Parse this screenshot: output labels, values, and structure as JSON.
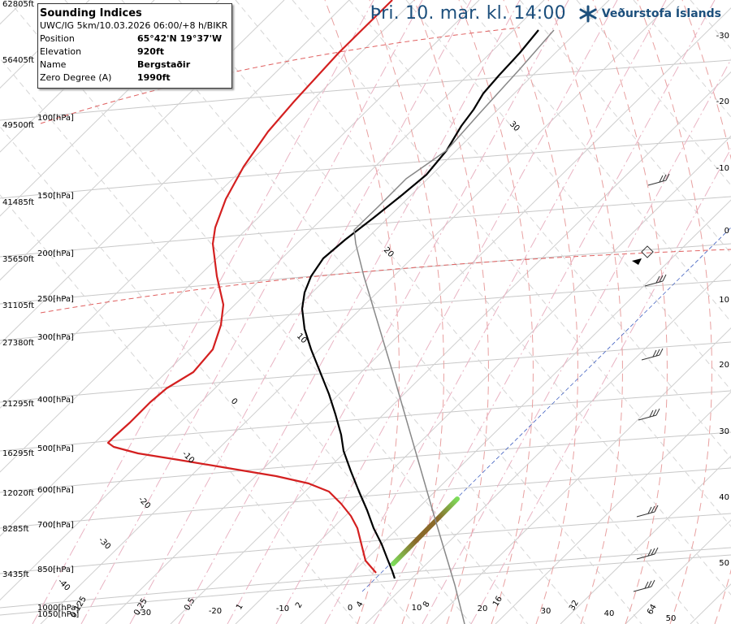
{
  "header": {
    "title": "Þri. 10. mar. kl. 14:00",
    "brand": "Veðurstofa Íslands"
  },
  "info": {
    "title": "Sounding Indices",
    "model_line": "UWC/IG 5km/10.03.2026 06:00/+8 h/BIKR",
    "rows": [
      {
        "label": "Position",
        "value": "65°42'N 19°37'W"
      },
      {
        "label": "Elevation",
        "value": "920ft"
      },
      {
        "label": "Name",
        "value": "Bergstaðir"
      },
      {
        "label": "Zero Degree (A)",
        "value": "1990ft"
      }
    ]
  },
  "chart_data": {
    "type": "line",
    "pressure_labels": [
      "1050[hPa]",
      "1000[hPa]",
      "850[hPa]",
      "700[hPa]",
      "600[hPa]",
      "500[hPa]",
      "400[hPa]",
      "300[hPa]",
      "250[hPa]",
      "200[hPa]",
      "150[hPa]",
      "100[hPa]"
    ],
    "height_labels": [
      "62805ft",
      "56405ft",
      "49500ft",
      "41485ft",
      "35650ft",
      "31105ft",
      "27380ft",
      "21295ft",
      "16295ft",
      "12020ft",
      "8285ft",
      "3435ft"
    ],
    "temperature_ticks": [
      "-30",
      "-20",
      "-10",
      "0",
      "10",
      "20",
      "30",
      "40",
      "50"
    ],
    "right_ticks": [
      "-30",
      "-20",
      "-10",
      "0",
      "10",
      "20",
      "30",
      "40",
      "50"
    ],
    "isotherm_labels": [
      "30",
      "20",
      "10",
      "0",
      "-10",
      "-20",
      "-30",
      "-40"
    ],
    "mixing_ratio_labels": [
      "0.125",
      "0.25",
      "0.5",
      "1",
      "2",
      "4",
      "8",
      "16",
      "32",
      "64"
    ],
    "series": [
      {
        "name": "",
        "color": "#d42020",
        "points": [
          [
            483,
            0
          ],
          [
            417,
            65
          ],
          [
            362,
            125
          ],
          [
            330,
            162
          ],
          [
            300,
            205
          ],
          [
            278,
            245
          ],
          [
            265,
            280
          ],
          [
            262,
            300
          ],
          [
            267,
            340
          ],
          [
            275,
            375
          ],
          [
            272,
            400
          ],
          [
            262,
            430
          ],
          [
            238,
            458
          ],
          [
            205,
            478
          ],
          [
            185,
            495
          ],
          [
            160,
            520
          ],
          [
            140,
            538
          ],
          [
            133,
            545
          ],
          [
            140,
            550
          ],
          [
            170,
            558
          ],
          [
            220,
            566
          ],
          [
            280,
            576
          ],
          [
            340,
            586
          ],
          [
            380,
            595
          ],
          [
            405,
            605
          ],
          [
            420,
            620
          ],
          [
            432,
            635
          ],
          [
            440,
            650
          ],
          [
            445,
            670
          ],
          [
            450,
            690
          ],
          [
            463,
            705
          ]
        ]
      },
      {
        "name": "",
        "color": "#000000",
        "points": [
          [
            663,
            37
          ],
          [
            640,
            65
          ],
          [
            615,
            92
          ],
          [
            595,
            115
          ],
          [
            583,
            135
          ],
          [
            568,
            155
          ],
          [
            550,
            185
          ],
          [
            525,
            215
          ],
          [
            495,
            240
          ],
          [
            460,
            268
          ],
          [
            425,
            295
          ],
          [
            398,
            318
          ],
          [
            383,
            340
          ],
          [
            375,
            360
          ],
          [
            372,
            380
          ],
          [
            375,
            405
          ],
          [
            383,
            430
          ],
          [
            393,
            455
          ],
          [
            405,
            485
          ],
          [
            413,
            510
          ],
          [
            420,
            535
          ],
          [
            423,
            555
          ],
          [
            432,
            580
          ],
          [
            442,
            605
          ],
          [
            452,
            628
          ],
          [
            460,
            650
          ],
          [
            470,
            670
          ],
          [
            477,
            688
          ],
          [
            483,
            703
          ],
          [
            486,
            712
          ]
        ]
      },
      {
        "name": "",
        "color": "#888888",
        "points": [
          [
            682,
            37
          ],
          [
            640,
            85
          ],
          [
            590,
            140
          ],
          [
            550,
            185
          ],
          [
            500,
            220
          ],
          [
            465,
            255
          ],
          [
            436,
            283
          ],
          [
            438,
            300
          ],
          [
            448,
            340
          ],
          [
            460,
            380
          ],
          [
            472,
            420
          ],
          [
            484,
            460
          ],
          [
            497,
            505
          ],
          [
            510,
            550
          ],
          [
            523,
            595
          ],
          [
            536,
            640
          ],
          [
            548,
            680
          ],
          [
            560,
            720
          ],
          [
            572,
            768
          ]
        ]
      }
    ],
    "wind_barbs": [
      "250hPa",
      "200hPa",
      "170hPa",
      "150hPa",
      "300hPa",
      "400hPa",
      "600hPa",
      "700hPa",
      "850hPa",
      "1000hPa"
    ]
  }
}
